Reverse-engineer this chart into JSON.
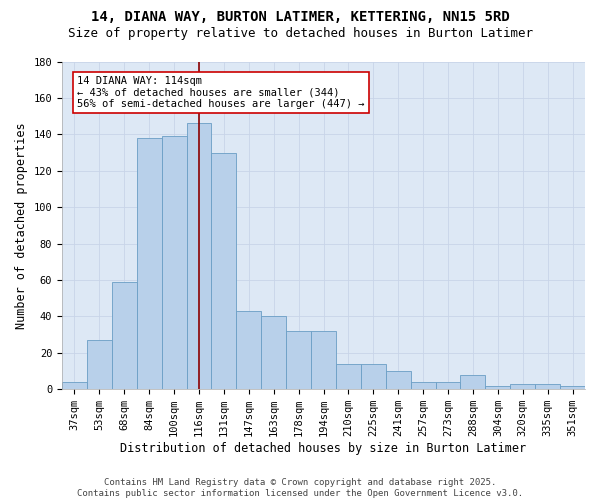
{
  "title_line1": "14, DIANA WAY, BURTON LATIMER, KETTERING, NN15 5RD",
  "title_line2": "Size of property relative to detached houses in Burton Latimer",
  "xlabel": "Distribution of detached houses by size in Burton Latimer",
  "ylabel": "Number of detached properties",
  "categories": [
    "37sqm",
    "53sqm",
    "68sqm",
    "84sqm",
    "100sqm",
    "116sqm",
    "131sqm",
    "147sqm",
    "163sqm",
    "178sqm",
    "194sqm",
    "210sqm",
    "225sqm",
    "241sqm",
    "257sqm",
    "273sqm",
    "288sqm",
    "304sqm",
    "320sqm",
    "335sqm",
    "351sqm"
  ],
  "values": [
    4,
    27,
    59,
    138,
    139,
    146,
    130,
    43,
    40,
    32,
    32,
    14,
    14,
    10,
    4,
    4,
    8,
    2,
    3,
    3,
    2
  ],
  "bar_color": "#b8d0ea",
  "bar_edge_color": "#6a9ec5",
  "vline_x": 5,
  "vline_color": "#8b0000",
  "annotation_text": "14 DIANA WAY: 114sqm\n← 43% of detached houses are smaller (344)\n56% of semi-detached houses are larger (447) →",
  "annotation_box_color": "#ffffff",
  "annotation_box_edge_color": "#cc0000",
  "ylim": [
    0,
    180
  ],
  "yticks": [
    0,
    20,
    40,
    60,
    80,
    100,
    120,
    140,
    160,
    180
  ],
  "grid_color": "#c8d4e8",
  "background_color": "#dde8f5",
  "footer_text": "Contains HM Land Registry data © Crown copyright and database right 2025.\nContains public sector information licensed under the Open Government Licence v3.0.",
  "title_fontsize": 10,
  "subtitle_fontsize": 9,
  "axis_label_fontsize": 8.5,
  "tick_fontsize": 7.5,
  "annotation_fontsize": 7.5,
  "footer_fontsize": 6.5
}
